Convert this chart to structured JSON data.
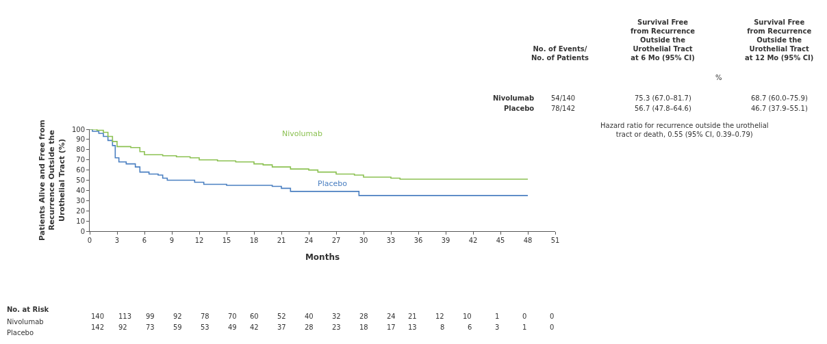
{
  "chart_data": {
    "type": "step",
    "xlabel": "Months",
    "ylabel": "Patients Alive and Free from\nRecurrence Outside the\nUrothelial Tract (%)",
    "xlim": [
      0,
      51
    ],
    "xticks": [
      0,
      3,
      6,
      9,
      12,
      15,
      18,
      21,
      24,
      27,
      30,
      33,
      36,
      39,
      42,
      45,
      48,
      51
    ],
    "ylim": [
      0,
      100
    ],
    "yticks": [
      0,
      10,
      20,
      30,
      40,
      50,
      60,
      70,
      80,
      90,
      100
    ],
    "legend": false,
    "marker": "none",
    "line_style": "solid",
    "series": [
      {
        "name": "Nivolumab",
        "color": "#8cc152",
        "x": [
          0,
          0.8,
          1.5,
          2,
          2.5,
          3,
          4.5,
          5.5,
          6,
          8,
          9.5,
          11,
          12,
          14,
          16,
          18,
          19,
          20,
          22,
          24,
          25,
          27,
          29,
          30,
          33,
          34,
          48
        ],
        "values": [
          100,
          99,
          97,
          93,
          88,
          83,
          82,
          78,
          75,
          74,
          73,
          72,
          70,
          69,
          68,
          66,
          65,
          63,
          61,
          60,
          58,
          56,
          55,
          53,
          52,
          51,
          51
        ]
      },
      {
        "name": "Placebo",
        "color": "#4a7fc1",
        "x": [
          0,
          0.3,
          1,
          1.5,
          2,
          2.5,
          2.8,
          3.2,
          4,
          5,
          5.5,
          6.5,
          7.5,
          8,
          8.5,
          10,
          11.5,
          12.5,
          15,
          18.5,
          20,
          21,
          22,
          29,
          29.5,
          48
        ],
        "values": [
          100,
          98,
          96,
          93,
          89,
          84,
          72,
          68,
          66,
          63,
          58,
          56,
          55,
          52,
          50,
          50,
          48,
          46,
          45,
          45,
          44,
          42,
          39,
          39,
          35,
          35
        ]
      }
    ],
    "annotations": [
      "No. at Risk",
      "Nivolumab 140 113 99 92 78 70 60 52 40 32 28 24 21 12 10 1 0 0",
      "Placebo 142 92 73 59 53 49 42 37 28 23 18 17 13 8 6 3 1 0",
      "No. of Events/\nNo. of Patients",
      "Survival Free\nfrom Recurrence\nOutside the\nUrothelial Tract\nat 6 Mo (95% CI)",
      "Survival Free\nfrom Recurrence\nOutside the\nUrothelial Tract\nat 12 Mo (95% CI)",
      "%",
      "Nivolumab",
      "54/140",
      "75.3 (67.0–81.7)",
      "68.7 (60.0–75.9)",
      "Placebo",
      "78/142",
      "56.7 (47.8–64.6)",
      "46.7 (37.9–55.1)",
      "Hazard ratio for recurrence outside the urothelial\ntract or death, 0.55 (95% CI, 0.39–0.79)"
    ]
  }
}
